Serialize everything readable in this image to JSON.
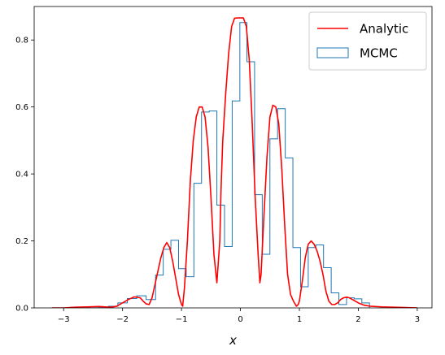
{
  "chart_data": {
    "type": "line",
    "xlabel": "x",
    "ylabel": "",
    "title": "",
    "xlim": [
      -3.5,
      3.25
    ],
    "ylim": [
      0,
      0.9
    ],
    "x_ticks": [
      -3,
      -2,
      -1,
      0,
      1,
      2,
      3
    ],
    "y_ticks": [
      0.0,
      0.2,
      0.4,
      0.6,
      0.8
    ],
    "grid": false,
    "legend_position": "top-right",
    "series": [
      {
        "name": "Analytic",
        "kind": "line",
        "color": "#ff0000",
        "x": [
          -3.2,
          -3.0,
          -2.8,
          -2.6,
          -2.4,
          -2.2,
          -2.1,
          -2.0,
          -1.9,
          -1.8,
          -1.7,
          -1.65,
          -1.6,
          -1.55,
          -1.5,
          -1.45,
          -1.4,
          -1.35,
          -1.3,
          -1.25,
          -1.2,
          -1.15,
          -1.1,
          -1.05,
          -1.0,
          -0.98,
          -0.95,
          -0.9,
          -0.85,
          -0.8,
          -0.75,
          -0.7,
          -0.65,
          -0.6,
          -0.55,
          -0.5,
          -0.45,
          -0.4,
          -0.35,
          -0.33,
          -0.3,
          -0.25,
          -0.2,
          -0.15,
          -0.1,
          -0.05,
          -0.02,
          0.0,
          0.02,
          0.05,
          0.1,
          0.15,
          0.2,
          0.25,
          0.3,
          0.33,
          0.35,
          0.4,
          0.45,
          0.5,
          0.55,
          0.6,
          0.65,
          0.7,
          0.75,
          0.8,
          0.85,
          0.9,
          0.95,
          0.98,
          1.0,
          1.05,
          1.1,
          1.15,
          1.2,
          1.25,
          1.3,
          1.35,
          1.4,
          1.45,
          1.5,
          1.55,
          1.6,
          1.65,
          1.7,
          1.75,
          1.8,
          1.85,
          1.9,
          2.0,
          2.1,
          2.2,
          2.4,
          2.6,
          2.8,
          3.0
        ],
        "y": [
          0.0,
          0.0,
          0.002,
          0.003,
          0.004,
          0.002,
          0.005,
          0.015,
          0.025,
          0.033,
          0.03,
          0.02,
          0.012,
          0.01,
          0.03,
          0.07,
          0.11,
          0.15,
          0.18,
          0.195,
          0.18,
          0.14,
          0.09,
          0.04,
          0.01,
          0.005,
          0.06,
          0.2,
          0.38,
          0.5,
          0.57,
          0.6,
          0.6,
          0.57,
          0.48,
          0.33,
          0.16,
          0.075,
          0.2,
          0.35,
          0.5,
          0.64,
          0.76,
          0.84,
          0.865,
          0.866,
          0.866,
          0.866,
          0.866,
          0.866,
          0.84,
          0.74,
          0.55,
          0.33,
          0.16,
          0.075,
          0.1,
          0.28,
          0.45,
          0.57,
          0.605,
          0.6,
          0.55,
          0.42,
          0.25,
          0.1,
          0.04,
          0.02,
          0.005,
          0.01,
          0.02,
          0.08,
          0.15,
          0.19,
          0.2,
          0.19,
          0.17,
          0.14,
          0.1,
          0.05,
          0.02,
          0.01,
          0.01,
          0.015,
          0.025,
          0.03,
          0.032,
          0.03,
          0.025,
          0.015,
          0.008,
          0.005,
          0.003,
          0.002,
          0.001,
          0.0
        ]
      },
      {
        "name": "MCMC",
        "kind": "step-histogram",
        "color": "#1f77b4",
        "bin_edges": [
          -3.2,
          -3.04,
          -2.88,
          -2.72,
          -2.56,
          -2.4,
          -2.24,
          -2.08,
          -1.92,
          -1.76,
          -1.6,
          -1.44,
          -1.31,
          -1.18,
          -1.05,
          -0.92,
          -0.79,
          -0.66,
          -0.53,
          -0.4,
          -0.27,
          -0.14,
          -0.01,
          0.11,
          0.24,
          0.37,
          0.5,
          0.63,
          0.76,
          0.89,
          1.02,
          1.15,
          1.28,
          1.41,
          1.54,
          1.67,
          1.8,
          1.93,
          2.06,
          2.19
        ],
        "values": [
          0.0,
          0.0,
          0.002,
          0.002,
          0.003,
          0.002,
          0.005,
          0.015,
          0.028,
          0.036,
          0.025,
          0.098,
          0.175,
          0.202,
          0.117,
          0.093,
          0.372,
          0.585,
          0.588,
          0.307,
          0.183,
          0.618,
          0.852,
          0.735,
          0.338,
          0.16,
          0.505,
          0.595,
          0.448,
          0.18,
          0.063,
          0.18,
          0.188,
          0.12,
          0.045,
          0.01,
          0.03,
          0.027,
          0.015
        ]
      }
    ]
  },
  "legend": {
    "items": [
      {
        "label": "Analytic",
        "style": "line",
        "color": "#ff0000"
      },
      {
        "label": "MCMC",
        "style": "box",
        "color": "#1f77b4"
      }
    ]
  }
}
